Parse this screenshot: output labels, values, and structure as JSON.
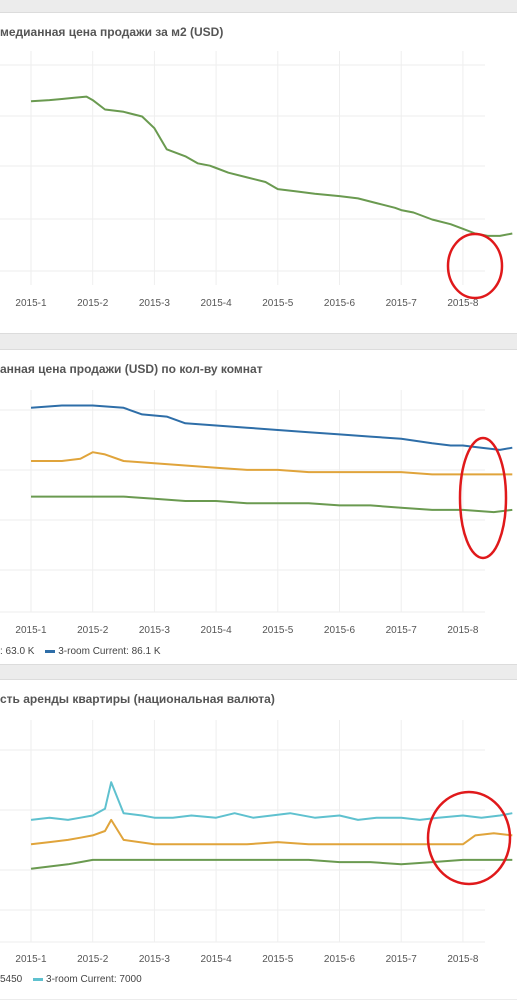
{
  "panels": [
    {
      "id": "p1",
      "title": "медианная цена продажи за м2 (USD)",
      "legend": null
    },
    {
      "id": "p2",
      "title": "анная цена продажи (USD) по кол-ву комнат",
      "legend": {
        "items": [
          {
            "text": ": 63.0 K",
            "color": null
          },
          {
            "text": "3-room  Current: 86.1 K",
            "color": "#2e6ea8"
          }
        ]
      }
    },
    {
      "id": "p3",
      "title": "сть аренды квартиры (национальная валюта)",
      "legend": {
        "items": [
          {
            "text": "5450",
            "color": null
          },
          {
            "text": "3-room  Current: 7000",
            "color": "#5fc1cf"
          }
        ]
      }
    }
  ],
  "chart_data": [
    {
      "type": "line",
      "title": "медианная цена продажи за м2 (USD)",
      "x_ticks": [
        "2015-1",
        "2015-2",
        "2015-3",
        "2015-4",
        "2015-5",
        "2015-6",
        "2015-7",
        "2015-8"
      ],
      "ylim": [
        0,
        100
      ],
      "series": [
        {
          "color": "#6a9a50",
          "x": [
            0.0,
            0.3,
            0.5,
            0.7,
            0.9,
            1.0,
            1.2,
            1.5,
            1.8,
            2.0,
            2.2,
            2.5,
            2.7,
            2.9,
            3.0,
            3.2,
            3.5,
            3.8,
            4.0,
            4.3,
            4.6,
            5.0,
            5.3,
            5.6,
            5.9,
            6.0,
            6.2,
            6.5,
            6.8,
            7.0,
            7.2,
            7.4,
            7.6,
            7.8
          ],
          "values": [
            78.5,
            79,
            79.5,
            80,
            80.5,
            79,
            75,
            74,
            72,
            67,
            58,
            55,
            52,
            51,
            50,
            48,
            46,
            44,
            41,
            40,
            39,
            38,
            37,
            35,
            33,
            32,
            31,
            28,
            26,
            24,
            22,
            21,
            21,
            22
          ]
        }
      ],
      "annotation": "red-ellipse"
    },
    {
      "type": "line",
      "title": "анная цена продажи (USD) по кол-ву комнат",
      "x_ticks": [
        "2015-1",
        "2015-2",
        "2015-3",
        "2015-4",
        "2015-5",
        "2015-6",
        "2015-7",
        "2015-8"
      ],
      "ylim": [
        0,
        100
      ],
      "series": [
        {
          "name": "3-room",
          "color": "#2e6ea8",
          "x": [
            0.0,
            0.5,
            1.0,
            1.5,
            1.8,
            2.2,
            2.5,
            3.0,
            3.5,
            4.0,
            4.5,
            5.0,
            5.5,
            6.0,
            6.5,
            6.8,
            7.0,
            7.3,
            7.6,
            7.8
          ],
          "values": [
            92,
            93,
            93,
            92,
            89,
            88,
            85,
            84,
            83,
            82,
            81,
            80,
            79,
            78,
            76,
            75,
            75,
            74,
            73,
            74
          ]
        },
        {
          "color": "#e0a43b",
          "x": [
            0.0,
            0.5,
            0.8,
            1.0,
            1.2,
            1.5,
            2.0,
            2.5,
            3.0,
            3.5,
            4.0,
            4.5,
            5.0,
            5.5,
            6.0,
            6.5,
            7.0,
            7.5,
            7.8
          ],
          "values": [
            68,
            68,
            69,
            72,
            71,
            68,
            67,
            66,
            65,
            64,
            64,
            63,
            63,
            63,
            63,
            62,
            62,
            62,
            62
          ]
        },
        {
          "color": "#6a9a50",
          "x": [
            0.0,
            0.5,
            1.0,
            1.5,
            2.0,
            2.5,
            3.0,
            3.5,
            4.0,
            4.5,
            5.0,
            5.5,
            6.0,
            6.5,
            7.0,
            7.5,
            7.8
          ],
          "values": [
            52,
            52,
            52,
            52,
            51,
            50,
            50,
            49,
            49,
            49,
            48,
            48,
            47,
            46,
            46,
            45,
            46
          ]
        }
      ],
      "annotation": "red-ellipse"
    },
    {
      "type": "line",
      "title": "сть аренды квартиры (национальная валюта)",
      "x_ticks": [
        "2015-1",
        "2015-2",
        "2015-3",
        "2015-4",
        "2015-5",
        "2015-6",
        "2015-7",
        "2015-8"
      ],
      "ylim": [
        0,
        100
      ],
      "series": [
        {
          "name": "3-room",
          "color": "#5fc1cf",
          "x": [
            0.0,
            0.3,
            0.6,
            0.8,
            1.0,
            1.2,
            1.3,
            1.5,
            1.8,
            2.0,
            2.3,
            2.6,
            3.0,
            3.3,
            3.6,
            3.9,
            4.2,
            4.6,
            5.0,
            5.3,
            5.6,
            6.0,
            6.3,
            6.6,
            7.0,
            7.3,
            7.6,
            7.8
          ],
          "values": [
            55,
            56,
            55,
            56,
            57,
            60,
            72,
            58,
            57,
            56,
            56,
            57,
            56,
            58,
            56,
            57,
            58,
            56,
            57,
            55,
            56,
            56,
            55,
            56,
            57,
            56,
            57,
            58
          ]
        },
        {
          "color": "#e0a43b",
          "x": [
            0.0,
            0.3,
            0.6,
            0.8,
            1.0,
            1.2,
            1.3,
            1.5,
            2.0,
            2.5,
            3.0,
            3.5,
            4.0,
            4.5,
            5.0,
            5.5,
            6.0,
            6.5,
            7.0,
            7.2,
            7.5,
            7.8
          ],
          "values": [
            44,
            45,
            46,
            47,
            48,
            50,
            55,
            46,
            44,
            44,
            44,
            44,
            45,
            44,
            44,
            44,
            44,
            44,
            44,
            48,
            49,
            48
          ]
        },
        {
          "color": "#6a9a50",
          "x": [
            0.0,
            0.3,
            0.6,
            0.8,
            1.0,
            1.5,
            2.0,
            2.5,
            3.0,
            3.5,
            4.0,
            4.5,
            5.0,
            5.5,
            6.0,
            6.5,
            7.0,
            7.5,
            7.8
          ],
          "values": [
            33,
            34,
            35,
            36,
            37,
            37,
            37,
            37,
            37,
            37,
            37,
            37,
            36,
            36,
            35,
            36,
            37,
            37,
            37
          ]
        }
      ],
      "annotation": "red-ellipse"
    }
  ]
}
